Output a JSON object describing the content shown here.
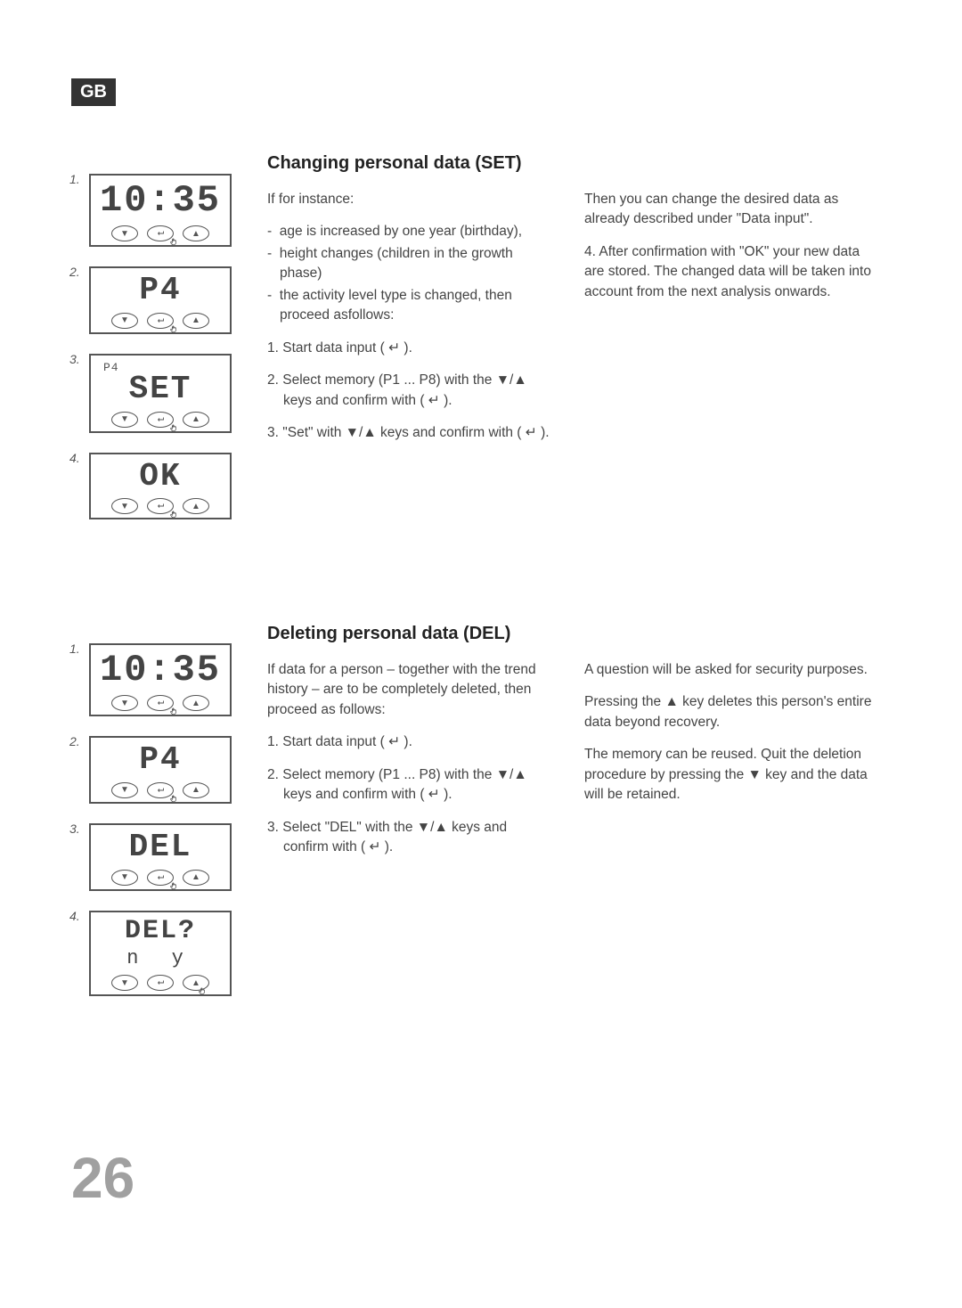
{
  "badge": "GB",
  "page_number": "26",
  "set_section": {
    "title": "Changing personal data (SET)",
    "col1": {
      "intro": "If for instance:",
      "bullets": [
        "age is increased by one year (birthday),",
        "height changes (children in the growth phase)",
        "the activity level type is changed, then proceed asfollows:"
      ],
      "steps": [
        "1. Start data input ( ↵ ).",
        "2. Select memory (P1 ... P8) with the ▼/▲ keys and confirm with ( ↵ ).",
        "3. \"Set\" with ▼/▲ keys and confirm with ( ↵ )."
      ]
    },
    "col2": {
      "p1": "Then you can change the desired data as already described under \"Data input\".",
      "p2": "4. After confirmation with \"OK\" your new data are stored. The changed data will be taken into account from the next analysis onwards."
    },
    "displays": [
      {
        "num": "1.",
        "main": "10:35",
        "press": "mid",
        "size": 42
      },
      {
        "num": "2.",
        "main": "P4",
        "press": "mid",
        "size": 36
      },
      {
        "num": "3.",
        "top": "P4",
        "main": "SET",
        "press": "mid",
        "size": 36
      },
      {
        "num": "4.",
        "main": "OK",
        "press": "mid",
        "size": 36
      }
    ]
  },
  "del_section": {
    "title": "Deleting personal data (DEL)",
    "col1": {
      "intro": "If data for a person – together with the trend history – are to be completely deleted, then proceed as follows:",
      "steps": [
        "1. Start data input ( ↵ ).",
        "2. Select memory (P1 ... P8) with the ▼/▲ keys and confirm with ( ↵ ).",
        "3. Select \"DEL\" with the ▼/▲ keys and confirm with ( ↵ )."
      ]
    },
    "col2": {
      "p1": "A question will be asked for security purposes.",
      "p2": "Pressing the ▲ key deletes this person's entire data beyond recovery.",
      "p3": "The memory can be reused. Quit the deletion procedure by pressing the ▼ key and the data will be retained."
    },
    "displays": [
      {
        "num": "1.",
        "main": "10:35",
        "press": "mid",
        "size": 42
      },
      {
        "num": "2.",
        "main": "P4",
        "press": "mid",
        "size": 36
      },
      {
        "num": "3.",
        "main": "DEL",
        "press": "mid",
        "size": 36
      },
      {
        "num": "4.",
        "main": "DEL?",
        "sub": "n y",
        "press": "right",
        "size": 30
      }
    ]
  },
  "symbols": {
    "down": "▼",
    "up": "▲",
    "enter": "↵"
  }
}
